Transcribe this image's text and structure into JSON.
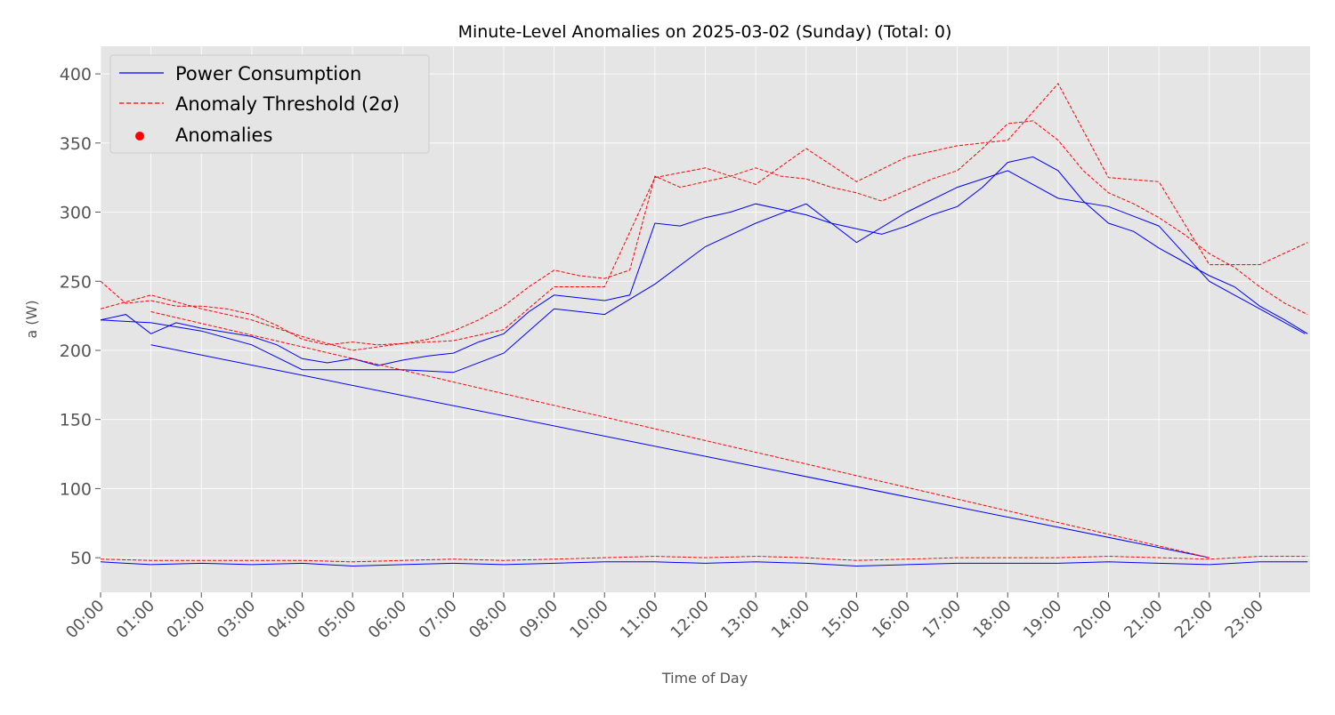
{
  "chart_data": {
    "type": "line",
    "title": "Minute-Level Anomalies on 2025-03-02 (Sunday) (Total: 0)",
    "xlabel": "Time of Day",
    "ylabel": "a (W)",
    "xlim": [
      0,
      24
    ],
    "ylim": [
      25,
      420
    ],
    "grid": true,
    "legend_position": "top-left",
    "x_tick_labels": [
      "00:00",
      "01:00",
      "02:00",
      "03:00",
      "04:00",
      "05:00",
      "06:00",
      "07:00",
      "08:00",
      "09:00",
      "10:00",
      "11:00",
      "12:00",
      "13:00",
      "14:00",
      "15:00",
      "16:00",
      "17:00",
      "18:00",
      "19:00",
      "20:00",
      "21:00",
      "22:00",
      "23:00"
    ],
    "x_ticks": [
      0,
      1,
      2,
      3,
      4,
      5,
      6,
      7,
      8,
      9,
      10,
      11,
      12,
      13,
      14,
      15,
      16,
      17,
      18,
      19,
      20,
      21,
      22,
      23
    ],
    "y_ticks": [
      50,
      100,
      150,
      200,
      250,
      300,
      350,
      400
    ],
    "y_tick_labels": [
      "50",
      "100",
      "150",
      "200",
      "250",
      "300",
      "350",
      "400"
    ],
    "series": [
      {
        "name": "Power Consumption",
        "color": "#0000ff",
        "style": "solid",
        "segments": [
          [
            [
              0,
              222
            ],
            [
              0.5,
              226
            ],
            [
              1,
              212
            ],
            [
              1.5,
              220
            ],
            [
              2,
              216
            ],
            [
              2.5,
              213
            ],
            [
              3,
              210
            ],
            [
              3.5,
              204
            ],
            [
              4,
              194
            ],
            [
              4.5,
              191
            ],
            [
              5,
              194
            ],
            [
              5.5,
              189
            ],
            [
              6,
              193
            ],
            [
              6.5,
              196
            ],
            [
              7,
              198
            ],
            [
              7.5,
              206
            ],
            [
              8,
              212
            ],
            [
              8.5,
              228
            ],
            [
              9,
              240
            ],
            [
              9.5,
              238
            ],
            [
              10,
              236
            ],
            [
              10.5,
              240
            ],
            [
              11,
              292
            ],
            [
              11.5,
              290
            ],
            [
              12,
              296
            ],
            [
              12.5,
              300
            ],
            [
              13,
              306
            ],
            [
              13.5,
              302
            ],
            [
              14,
              298
            ],
            [
              14.5,
              292
            ],
            [
              15,
              288
            ],
            [
              15.5,
              284
            ],
            [
              16,
              290
            ],
            [
              16.5,
              298
            ],
            [
              17,
              304
            ],
            [
              17.5,
              318
            ],
            [
              18,
              336
            ],
            [
              18.5,
              340
            ],
            [
              19,
              330
            ],
            [
              19.5,
              308
            ],
            [
              20,
              292
            ],
            [
              20.5,
              286
            ],
            [
              21,
              274
            ],
            [
              21.5,
              264
            ],
            [
              22,
              254
            ],
            [
              22.5,
              246
            ],
            [
              23,
              232
            ],
            [
              23.5,
              222
            ],
            [
              23.95,
              212
            ]
          ],
          [
            [
              0,
              222
            ],
            [
              1,
              220
            ],
            [
              2,
              214
            ],
            [
              3,
              204
            ],
            [
              4,
              186
            ],
            [
              5,
              186
            ],
            [
              6,
              186
            ],
            [
              7,
              184
            ],
            [
              8,
              198
            ],
            [
              9,
              230
            ],
            [
              10,
              226
            ],
            [
              11,
              248
            ],
            [
              12,
              275
            ],
            [
              13,
              292
            ],
            [
              14,
              306
            ],
            [
              15,
              278
            ],
            [
              16,
              300
            ],
            [
              17,
              318
            ],
            [
              18,
              330
            ],
            [
              19,
              310
            ],
            [
              20,
              304
            ],
            [
              21,
              290
            ],
            [
              22,
              250
            ],
            [
              23,
              230
            ],
            [
              23.9,
              212
            ]
          ],
          [
            [
              1,
              204
            ],
            [
              22,
              50
            ]
          ],
          [
            [
              0,
              47
            ],
            [
              1,
              45
            ],
            [
              2,
              46
            ],
            [
              3,
              45
            ],
            [
              4,
              46
            ],
            [
              5,
              44
            ],
            [
              6,
              45
            ],
            [
              7,
              46
            ],
            [
              8,
              45
            ],
            [
              9,
              46
            ],
            [
              10,
              47
            ],
            [
              11,
              47
            ],
            [
              12,
              46
            ],
            [
              13,
              47
            ],
            [
              14,
              46
            ],
            [
              15,
              44
            ],
            [
              16,
              45
            ],
            [
              17,
              46
            ],
            [
              18,
              46
            ],
            [
              19,
              46
            ],
            [
              20,
              47
            ],
            [
              21,
              46
            ],
            [
              22,
              45
            ],
            [
              23,
              47
            ],
            [
              23.95,
              47
            ]
          ]
        ]
      },
      {
        "name": "Anomaly Threshold (2σ)",
        "color": "#ff0000",
        "style": "dashed",
        "segments": [
          [
            [
              0,
              250
            ],
            [
              0.5,
              234
            ],
            [
              1,
              236
            ],
            [
              1.5,
              232
            ],
            [
              2,
              232
            ],
            [
              2.5,
              230
            ],
            [
              3,
              226
            ],
            [
              3.5,
              218
            ],
            [
              4,
              208
            ],
            [
              4.5,
              204
            ],
            [
              5,
              206
            ],
            [
              5.5,
              204
            ],
            [
              6,
              205
            ],
            [
              6.5,
              208
            ],
            [
              7,
              214
            ],
            [
              7.5,
              222
            ],
            [
              8,
              232
            ],
            [
              8.5,
              246
            ],
            [
              9,
              258
            ],
            [
              9.5,
              254
            ],
            [
              10,
              252
            ],
            [
              10.5,
              258
            ],
            [
              11,
              326
            ],
            [
              11.5,
              318
            ],
            [
              12,
              322
            ],
            [
              12.5,
              326
            ],
            [
              13,
              332
            ],
            [
              13.5,
              326
            ],
            [
              14,
              324
            ],
            [
              14.5,
              318
            ],
            [
              15,
              314
            ],
            [
              15.5,
              308
            ],
            [
              16,
              316
            ],
            [
              16.5,
              324
            ],
            [
              17,
              330
            ],
            [
              17.5,
              346
            ],
            [
              18,
              364
            ],
            [
              18.5,
              366
            ],
            [
              19,
              352
            ],
            [
              19.5,
              330
            ],
            [
              20,
              314
            ],
            [
              20.5,
              306
            ],
            [
              21,
              296
            ],
            [
              21.5,
              284
            ],
            [
              22,
              270
            ],
            [
              22.5,
              260
            ],
            [
              23,
              246
            ],
            [
              23.5,
              234
            ],
            [
              23.95,
              226
            ]
          ],
          [
            [
              0,
              230
            ],
            [
              1,
              240
            ],
            [
              2,
              230
            ],
            [
              3,
              222
            ],
            [
              4,
              210
            ],
            [
              5,
              200
            ],
            [
              6,
              205
            ],
            [
              7,
              207
            ],
            [
              8,
              215
            ],
            [
              9,
              246
            ],
            [
              10,
              246
            ],
            [
              11,
              325
            ],
            [
              12,
              332
            ],
            [
              13,
              320
            ],
            [
              14,
              346
            ],
            [
              15,
              322
            ],
            [
              16,
              340
            ],
            [
              17,
              348
            ],
            [
              18,
              352
            ],
            [
              19,
              393
            ],
            [
              20,
              325
            ],
            [
              21,
              322
            ],
            [
              22,
              262
            ],
            [
              23,
              262
            ],
            [
              23.95,
              278
            ]
          ],
          [
            [
              1,
              228
            ],
            [
              22,
              50
            ]
          ],
          [
            [
              0,
              49
            ],
            [
              1,
              48
            ],
            [
              2,
              48
            ],
            [
              3,
              48
            ],
            [
              4,
              48
            ],
            [
              5,
              47
            ],
            [
              6,
              48
            ],
            [
              7,
              49
            ],
            [
              8,
              48
            ],
            [
              9,
              49
            ],
            [
              10,
              50
            ],
            [
              11,
              51
            ],
            [
              12,
              50
            ],
            [
              13,
              51
            ],
            [
              14,
              50
            ],
            [
              15,
              48
            ],
            [
              16,
              49
            ],
            [
              17,
              50
            ],
            [
              18,
              50
            ],
            [
              19,
              50
            ],
            [
              20,
              51
            ],
            [
              21,
              50
            ],
            [
              22,
              49
            ],
            [
              23,
              51
            ],
            [
              23.95,
              51
            ]
          ]
        ]
      },
      {
        "name": "Anomalies",
        "color": "#ff0000",
        "style": "marker",
        "points": []
      }
    ]
  }
}
